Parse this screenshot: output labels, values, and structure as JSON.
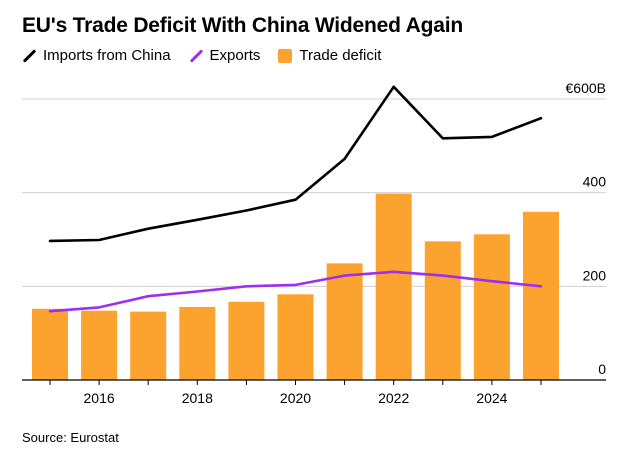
{
  "title": "EU's Trade Deficit With China Widened Again",
  "source": "Source: Eurostat",
  "colors": {
    "imports": "#000000",
    "exports": "#9b30f0",
    "deficit": "#fba32e",
    "grid": "#d0d0d0",
    "axis": "#000000"
  },
  "legend": [
    {
      "label": "Imports from China",
      "type": "line",
      "color_key": "imports"
    },
    {
      "label": "Exports",
      "type": "line",
      "color_key": "exports"
    },
    {
      "label": "Trade deficit",
      "type": "box",
      "color_key": "deficit"
    }
  ],
  "chart_data": {
    "type": "bar",
    "title": "EU's Trade Deficit With China Widened Again",
    "xlabel": "",
    "ylabel": "",
    "x": [
      2015,
      2016,
      2017,
      2018,
      2019,
      2020,
      2021,
      2022,
      2023,
      2024,
      2025
    ],
    "x_tick_values": [
      2016,
      2018,
      2020,
      2022,
      2024
    ],
    "x_tick_labels": [
      "2016",
      "2018",
      "2020",
      "2022",
      "2024"
    ],
    "y_ticks": [
      0,
      200,
      400,
      600
    ],
    "y_tick_labels": [
      "0",
      "200",
      "400",
      "€600B"
    ],
    "ylim": [
      0,
      600
    ],
    "grid": true,
    "y_axis_position": "right",
    "legend_position": "top-left",
    "series": [
      {
        "name": "Trade deficit",
        "type": "bar",
        "color_key": "deficit",
        "values": [
          152,
          148,
          146,
          156,
          167,
          183,
          249,
          398,
          296,
          311,
          359
        ]
      },
      {
        "name": "Imports from China",
        "type": "line",
        "color_key": "imports",
        "values": [
          297,
          299,
          323,
          342,
          362,
          385,
          472,
          626,
          516,
          519,
          559
        ]
      },
      {
        "name": "Exports",
        "type": "line",
        "color_key": "exports",
        "values": [
          147,
          155,
          179,
          189,
          200,
          203,
          223,
          231,
          223,
          211,
          200
        ]
      }
    ]
  }
}
